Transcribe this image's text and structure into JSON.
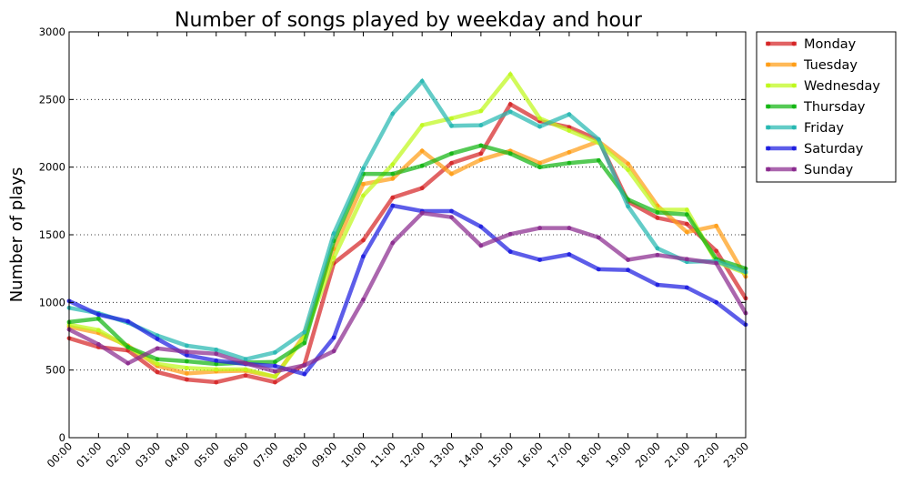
{
  "chart_data": {
    "type": "line",
    "title": "Number of songs played by weekday and hour",
    "xlabel": "",
    "ylabel": "Number of plays",
    "ylim": [
      0,
      3000
    ],
    "yticks": [
      0,
      500,
      1000,
      1500,
      2000,
      2500,
      3000
    ],
    "grid": "horizontal dotted",
    "legend_position": "outside-top-right",
    "categories": [
      "00:00",
      "01:00",
      "02:00",
      "03:00",
      "04:00",
      "05:00",
      "06:00",
      "07:00",
      "08:00",
      "09:00",
      "10:00",
      "11:00",
      "12:00",
      "13:00",
      "14:00",
      "15:00",
      "16:00",
      "17:00",
      "18:00",
      "19:00",
      "20:00",
      "21:00",
      "22:00",
      "23:00"
    ],
    "series": [
      {
        "name": "Monday",
        "color": "#d62728",
        "values": [
          735,
          670,
          645,
          485,
          430,
          410,
          460,
          410,
          540,
          1290,
          1460,
          1775,
          1845,
          2030,
          2100,
          2465,
          2340,
          2295,
          2200,
          1745,
          1625,
          1580,
          1380,
          1030
        ]
      },
      {
        "name": "Tuesday",
        "color": "#ff9e17",
        "values": [
          820,
          775,
          680,
          530,
          475,
          490,
          495,
          450,
          760,
          1395,
          1875,
          1915,
          2120,
          1950,
          2055,
          2120,
          2030,
          2110,
          2190,
          2025,
          1715,
          1520,
          1565,
          1190
        ]
      },
      {
        "name": "Wednesday",
        "color": "#bff81c",
        "values": [
          835,
          795,
          670,
          545,
          515,
          505,
          505,
          450,
          745,
          1330,
          1790,
          2020,
          2310,
          2360,
          2415,
          2685,
          2360,
          2270,
          2180,
          1980,
          1685,
          1685,
          1300,
          1215
        ]
      },
      {
        "name": "Thursday",
        "color": "#14b614",
        "values": [
          855,
          880,
          670,
          580,
          565,
          545,
          555,
          560,
          700,
          1455,
          1950,
          1950,
          2010,
          2100,
          2160,
          2100,
          2000,
          2030,
          2050,
          1760,
          1665,
          1650,
          1320,
          1250
        ]
      },
      {
        "name": "Friday",
        "color": "#27b8b2",
        "values": [
          960,
          920,
          850,
          755,
          680,
          650,
          580,
          630,
          780,
          1510,
          1990,
          2395,
          2635,
          2305,
          2310,
          2410,
          2300,
          2390,
          2205,
          1710,
          1400,
          1300,
          1305,
          1225
        ]
      },
      {
        "name": "Saturday",
        "color": "#1e1ee0",
        "values": [
          1010,
          910,
          860,
          730,
          610,
          570,
          545,
          530,
          470,
          740,
          1340,
          1715,
          1675,
          1675,
          1560,
          1375,
          1315,
          1355,
          1245,
          1240,
          1130,
          1110,
          1000,
          835
        ]
      },
      {
        "name": "Sunday",
        "color": "#8b2b8f",
        "values": [
          800,
          690,
          550,
          660,
          635,
          620,
          550,
          490,
          535,
          640,
          1020,
          1440,
          1660,
          1630,
          1420,
          1505,
          1550,
          1550,
          1480,
          1315,
          1350,
          1320,
          1290,
          920
        ]
      }
    ]
  }
}
